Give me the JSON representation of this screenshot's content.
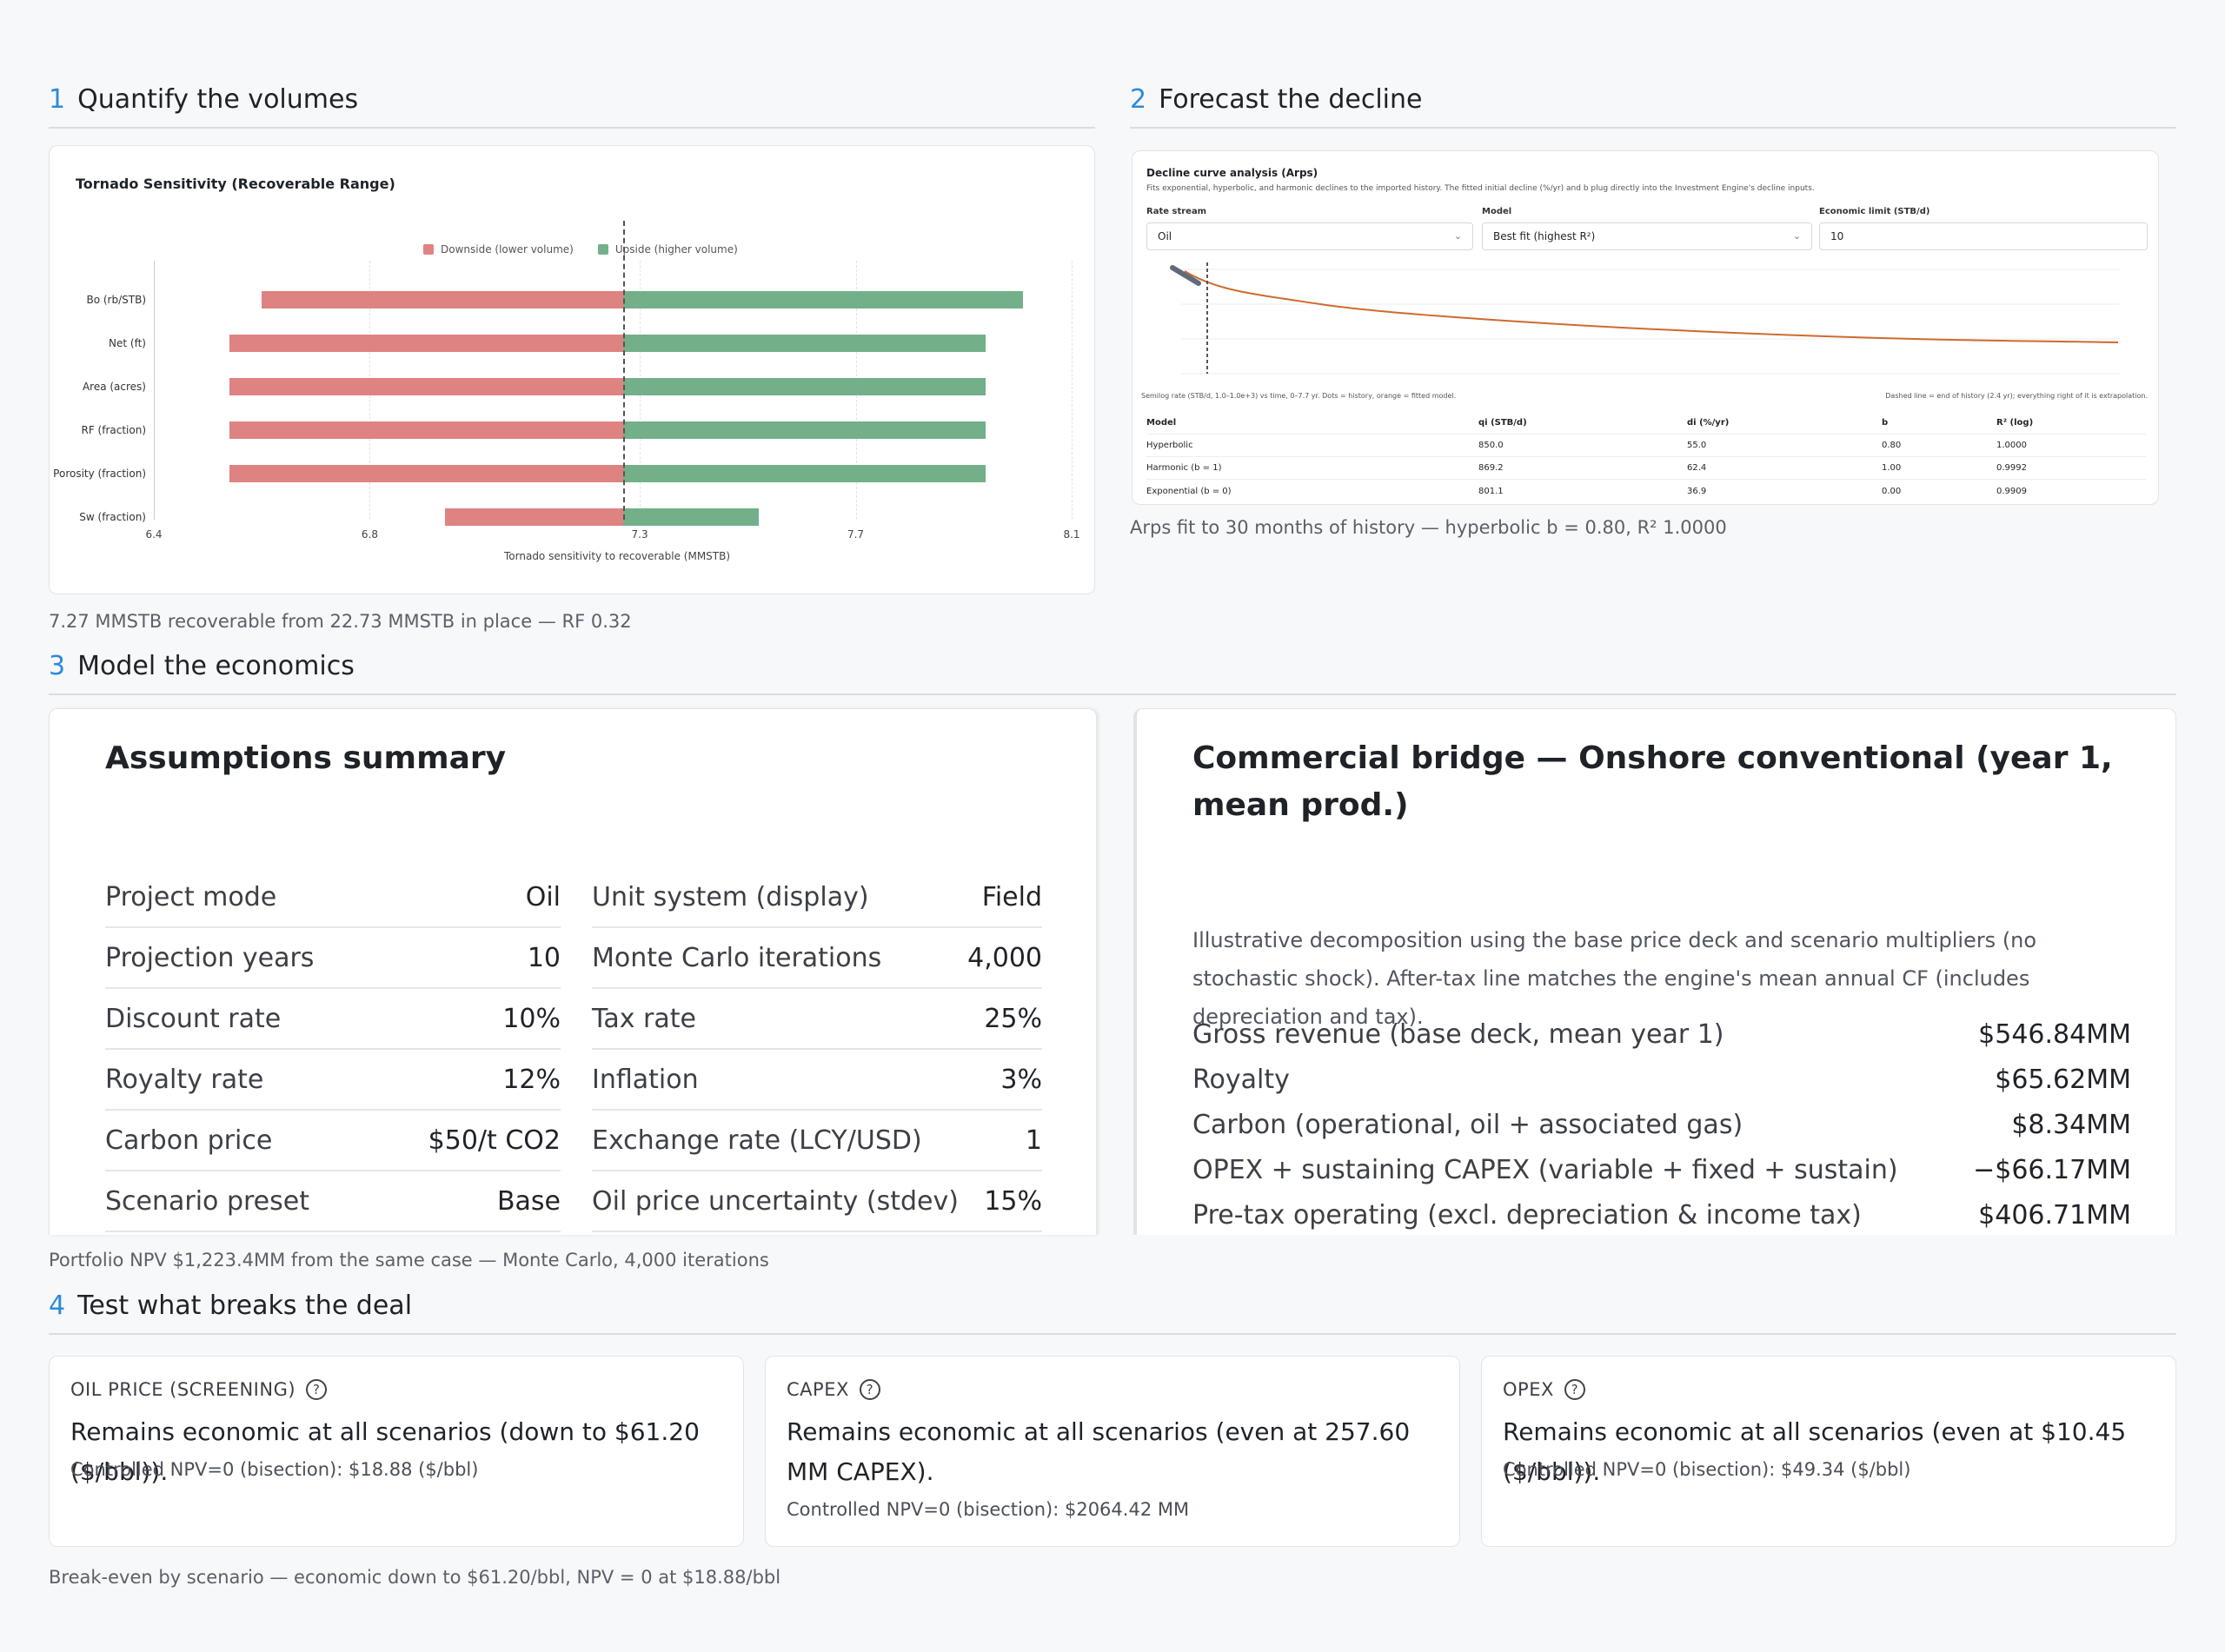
{
  "sections": [
    {
      "num": "1",
      "title": "Quantify the volumes"
    },
    {
      "num": "2",
      "title": "Forecast the decline"
    },
    {
      "num": "3",
      "title": "Model the economics"
    },
    {
      "num": "4",
      "title": "Test what breaks the deal"
    }
  ],
  "tornado": {
    "title": "Tornado Sensitivity (Recoverable Range)",
    "legend_down": "Downside (lower volume)",
    "legend_up": "Upside (higher volume)",
    "xlabel": "Tornado sensitivity to recoverable (MMSTB)",
    "ticks": [
      "6.4",
      "6.8",
      "7.3",
      "7.7",
      "8.1"
    ],
    "caption": "7.27 MMSTB recoverable from 22.73 MMSTB in place — RF 0.32"
  },
  "chart_data": {
    "type": "bar",
    "orientation": "horizontal",
    "title": "Tornado Sensitivity (Recoverable Range)",
    "xlabel": "Tornado sensitivity to recoverable (MMSTB)",
    "base": 7.27,
    "xlim": [
      6.4,
      8.1
    ],
    "categories": [
      "Bo (rb/STB)",
      "Net (ft)",
      "Area (acres)",
      "RF (fraction)",
      "Porosity (fraction)",
      "Sw (fraction)"
    ],
    "series": [
      {
        "name": "Downside (lower volume)",
        "values": [
          6.6,
          6.54,
          6.54,
          6.54,
          6.54,
          6.94
        ]
      },
      {
        "name": "Upside (higher volume)",
        "values": [
          8.01,
          7.94,
          7.94,
          7.94,
          7.94,
          7.52
        ]
      }
    ],
    "colors": {
      "down": "#df8282",
      "up": "#73b08a"
    },
    "legend": "top"
  },
  "decline": {
    "heading": "Decline curve analysis (Arps)",
    "desc": "Fits exponential, hyperbolic, and harmonic declines to the imported history. The fitted initial decline (%/yr) and b plug directly into the Investment Engine's decline inputs.",
    "rate_label": "Rate stream",
    "rate_value": "Oil",
    "model_label": "Model",
    "model_value": "Best fit (highest R²)",
    "limit_label": "Economic limit (STB/d)",
    "limit_value": "10",
    "note_left": "Semilog rate (STB/d, 1.0–1.0e+3) vs time, 0–7.7 yr. Dots = history, orange = fitted model.",
    "note_right": "Dashed line = end of history (2.4 yr); everything right of it is extrapolation.",
    "table_headers": [
      "Model",
      "qi (STB/d)",
      "di (%/yr)",
      "b",
      "R² (log)"
    ],
    "table_rows": [
      [
        "Hyperbolic",
        "850.0",
        "55.0",
        "0.80",
        "1.0000"
      ],
      [
        "Harmonic (b = 1)",
        "869.2",
        "62.4",
        "1.00",
        "0.9992"
      ],
      [
        "Exponential (b = 0)",
        "801.1",
        "36.9",
        "0.00",
        "0.9909"
      ]
    ],
    "caption": "Arps fit to 30 months of history — hyperbolic b = 0.80, R² 1.0000"
  },
  "assumptions": {
    "title": "Assumptions summary",
    "left": [
      {
        "k": "Project mode",
        "v": "Oil"
      },
      {
        "k": "Projection years",
        "v": "10"
      },
      {
        "k": "Discount rate",
        "v": "10%"
      },
      {
        "k": "Royalty rate",
        "v": "12%"
      },
      {
        "k": "Carbon price",
        "v": "$50/t CO2"
      },
      {
        "k": "Scenario preset",
        "v": "Base"
      }
    ],
    "right": [
      {
        "k": "Unit system (display)",
        "v": "Field"
      },
      {
        "k": "Monte Carlo iterations",
        "v": "4,000"
      },
      {
        "k": "Tax rate",
        "v": "25%"
      },
      {
        "k": "Inflation",
        "v": "3%"
      },
      {
        "k": "Exchange rate (LCY/USD)",
        "v": "1"
      },
      {
        "k": "Oil price uncertainty (stdev)",
        "v": "15%"
      }
    ]
  },
  "bridge": {
    "title": "Commercial bridge — Onshore conventional (year 1, mean prod.)",
    "desc": "Illustrative decomposition using the base price deck and scenario multipliers (no stochastic shock). After-tax line matches the engine's mean annual CF (includes depreciation and tax).",
    "rows": [
      {
        "k": "Gross revenue (base deck, mean year 1)",
        "v": "$546.84MM"
      },
      {
        "k": "Royalty",
        "v": "$65.62MM"
      },
      {
        "k": "Carbon (operational, oil + associated gas)",
        "v": "$8.34MM"
      },
      {
        "k": "OPEX + sustaining CAPEX (variable + fixed + sustain)",
        "v": "−$66.17MM"
      },
      {
        "k": "Pre-tax operating (excl. depreciation & income tax)",
        "v": "$406.71MM"
      }
    ]
  },
  "economics_caption": "Portfolio NPV $1,223.4MM from the same case — Monte Carlo, 4,000 iterations",
  "breakers": [
    {
      "head": "OIL PRICE (SCREENING)",
      "main": "Remains economic at all scenarios (down to $61.20 ($/bbl)).",
      "sub": "Controlled NPV=0 (bisection): $18.88 ($/bbl)"
    },
    {
      "head": "CAPEX",
      "main": "Remains economic at all scenarios (even at 257.60 MM CAPEX).",
      "sub": "Controlled NPV=0 (bisection): $2064.42 MM"
    },
    {
      "head": "OPEX",
      "main": "Remains economic at all scenarios (even at $10.45 ($/bbl)).",
      "sub": "Controlled NPV=0 (bisection): $49.34 ($/bbl)"
    }
  ],
  "breakers_caption": "Break-even by scenario — economic down to $61.20/bbl, NPV = 0 at $18.88/bbl"
}
